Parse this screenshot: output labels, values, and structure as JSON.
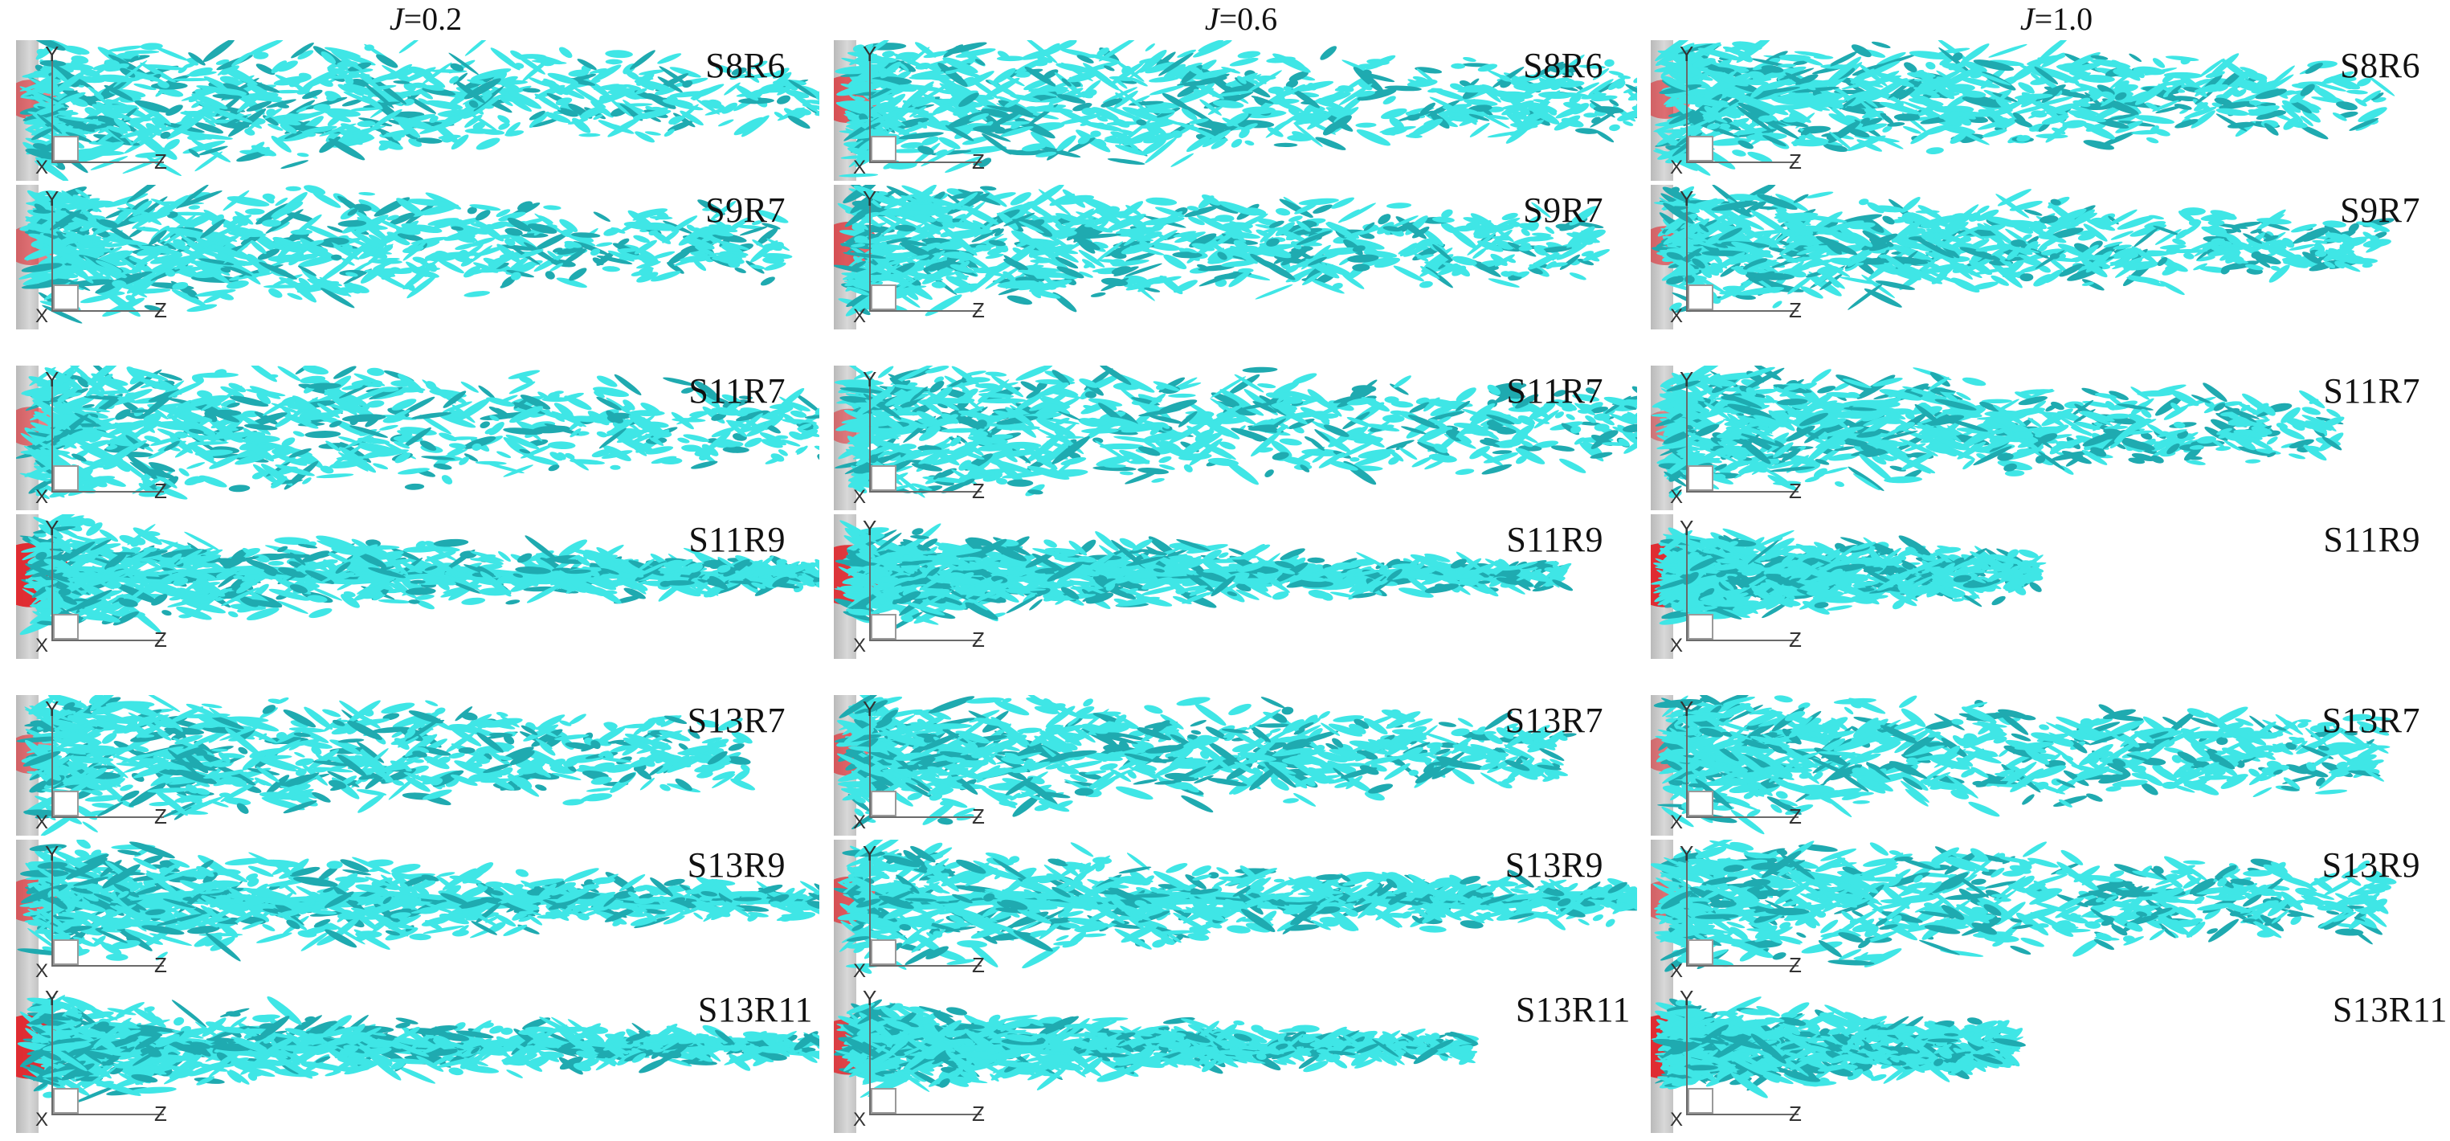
{
  "columns": [
    {
      "prefix": "J",
      "value": "=0.2"
    },
    {
      "prefix": "J",
      "value": "=0.6"
    },
    {
      "prefix": "J",
      "value": "=1.0"
    }
  ],
  "rows": [
    "S8R6",
    "S9R7",
    "S11R7",
    "S11R9",
    "S13R7",
    "S13R9",
    "S13R11"
  ],
  "axes": {
    "y": "Y",
    "z": "Z",
    "x": "X"
  },
  "colors": {
    "vortex": "#3fe6e6",
    "vortex_dark": "#1faab0",
    "core": "#e0242a",
    "wall": "#c8c8c8"
  }
}
